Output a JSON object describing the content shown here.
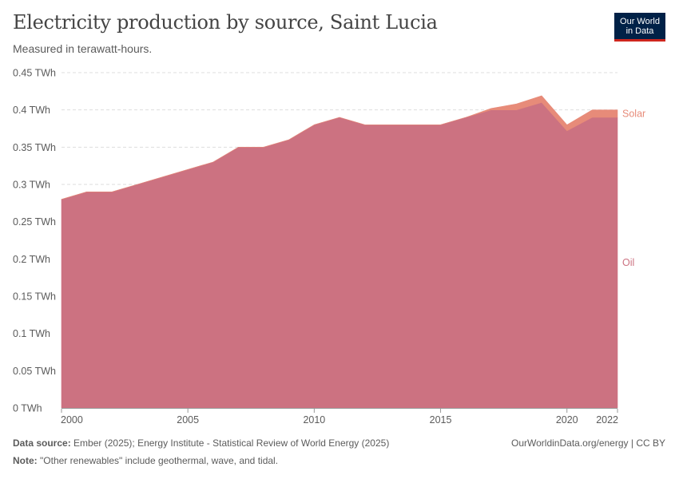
{
  "header": {
    "title": "Electricity production by source, Saint Lucia",
    "subtitle": "Measured in terawatt-hours."
  },
  "logo": {
    "line1": "Our World",
    "line2": "in Data"
  },
  "footer": {
    "source_label": "Data source:",
    "source_text": "Ember (2025); Energy Institute - Statistical Review of World Energy (2025)",
    "note_label": "Note:",
    "note_text": "\"Other renewables\" include geothermal, wave, and tidal.",
    "credit": "OurWorldinData.org/energy | CC BY"
  },
  "colors": {
    "oil": "#cc7281",
    "solar": "#e78b79",
    "grid": "#dddddd",
    "axis": "#999999"
  },
  "chart_data": {
    "type": "area",
    "stacked": true,
    "title": "Electricity production by source, Saint Lucia",
    "subtitle": "Measured in terawatt-hours.",
    "unit": "TWh",
    "xlim": [
      2000,
      2022
    ],
    "ylim": [
      0,
      0.45
    ],
    "x_ticks": [
      "2000",
      "2005",
      "2010",
      "2015",
      "2020",
      "2022"
    ],
    "x_tick_values": [
      2000,
      2005,
      2010,
      2015,
      2020,
      2022
    ],
    "y_ticks": [
      "0 TWh",
      "0.05 TWh",
      "0.1 TWh",
      "0.15 TWh",
      "0.2 TWh",
      "0.25 TWh",
      "0.3 TWh",
      "0.35 TWh",
      "0.4 TWh",
      "0.45 TWh"
    ],
    "y_tick_values": [
      0,
      0.05,
      0.1,
      0.15,
      0.2,
      0.25,
      0.3,
      0.35,
      0.4,
      0.45
    ],
    "x": [
      2000,
      2001,
      2002,
      2003,
      2004,
      2005,
      2006,
      2007,
      2008,
      2009,
      2010,
      2011,
      2012,
      2013,
      2014,
      2015,
      2016,
      2017,
      2018,
      2019,
      2020,
      2021,
      2022
    ],
    "series": [
      {
        "name": "Oil",
        "values": [
          0.28,
          0.29,
          0.29,
          0.3,
          0.31,
          0.32,
          0.33,
          0.35,
          0.35,
          0.36,
          0.38,
          0.39,
          0.38,
          0.38,
          0.38,
          0.38,
          0.39,
          0.4,
          0.4,
          0.41,
          0.372,
          0.39,
          0.39
        ]
      },
      {
        "name": "Solar",
        "values": [
          0,
          0,
          0,
          0,
          0,
          0,
          0,
          0,
          0,
          0,
          0,
          0,
          0,
          0,
          0,
          0,
          0,
          0.002,
          0.008,
          0.009,
          0.008,
          0.01,
          0.01
        ]
      }
    ],
    "grid": "horizontal-dashed",
    "legend": "right-end labels"
  }
}
